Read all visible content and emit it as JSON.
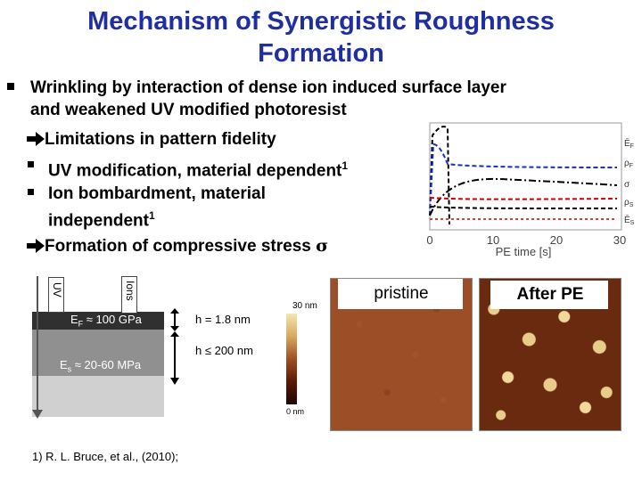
{
  "title": {
    "line1": "Mechanism of Synergistic Roughness",
    "line2": "Formation"
  },
  "bullet": {
    "line1": "Wrinkling by interaction of dense ion induced surface layer",
    "line2": "and weakened UV modified photoresist"
  },
  "points": {
    "limitations": "Limitations in pattern fidelity",
    "uv": "UV modification, material dependent",
    "uv_ref": "1",
    "ion_line1": "Ion bombardment, material",
    "ion_line2": "independent",
    "ion_ref": "1",
    "stress": "Formation of compressive stress",
    "sigma": "σ"
  },
  "chart_data": {
    "type": "line",
    "x_ticks": [
      "0",
      "10",
      "20",
      "30"
    ],
    "xlabel": "PE time [s]",
    "xlim": [
      0,
      30
    ],
    "series": [
      {
        "name": "Ē_F",
        "color": "#000000",
        "style": "dash"
      },
      {
        "name": "ρ_F",
        "color": "#1f2fbf",
        "style": "dash"
      },
      {
        "name": "σ",
        "color": "#000000",
        "style": "dash-dot"
      },
      {
        "name": "ρ_S",
        "color": "#cc0000",
        "style": "dash"
      },
      {
        "name": "Ē_S",
        "color": "#000000",
        "style": "dash"
      }
    ],
    "legend": [
      "Ē",
      "ρ",
      "σ",
      "ρ",
      "Ē"
    ],
    "legend_subs": [
      "F",
      "F",
      "",
      "S",
      "S"
    ]
  },
  "diagram": {
    "uv_label": "UV",
    "ions_label": "Ions",
    "ef_label": "E",
    "ef_sub": "F",
    "ef_value": " ≈ 100 GPa",
    "es_label": "E",
    "es_sub": "s",
    "es_value": " ≈ 20-60 MPa",
    "h1": "h = 1.8 nm",
    "h2": "h ≤ 200 nm"
  },
  "afm": {
    "scale_top": "30 nm",
    "scale_bottom": "0 nm",
    "pristine_label": "pristine",
    "after_label": "After PE"
  },
  "reference": "1) R. L. Bruce, et al., (2010);"
}
